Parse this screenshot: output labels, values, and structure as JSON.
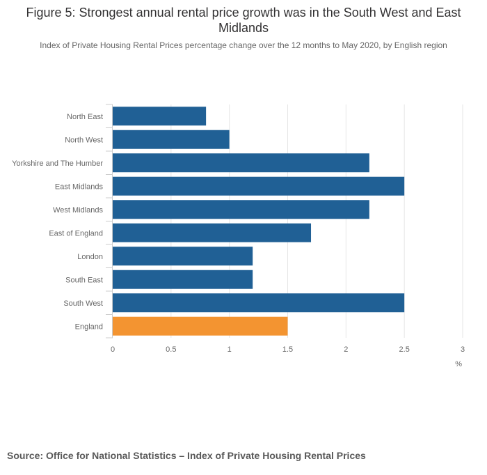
{
  "chart_data": {
    "type": "bar",
    "orientation": "horizontal",
    "title": "Figure 5: Strongest annual rental price growth was in the South West and East Midlands",
    "subtitle": "Index of Private Housing Rental Prices percentage change over the 12 months to May 2020, by English region",
    "categories": [
      "North East",
      "North West",
      "Yorkshire and The Humber",
      "East Midlands",
      "West Midlands",
      "East of England",
      "London",
      "South East",
      "South West",
      "England"
    ],
    "values": [
      0.8,
      1.0,
      2.2,
      2.5,
      2.2,
      1.7,
      1.2,
      1.2,
      2.5,
      1.5
    ],
    "highlight_category": "England",
    "xlabel": "%",
    "ylabel": "",
    "xlim": [
      0,
      3
    ],
    "xticks": [
      "0",
      "0.5",
      "1",
      "1.5",
      "2",
      "2.5",
      "3"
    ],
    "grid": true,
    "colors": {
      "bar": "#206095",
      "highlight": "#f39431",
      "grid": "#e6e6e6",
      "axis": "#cccccc"
    }
  },
  "source": "Source: Office for National Statistics – Index of Private Housing Rental Prices"
}
